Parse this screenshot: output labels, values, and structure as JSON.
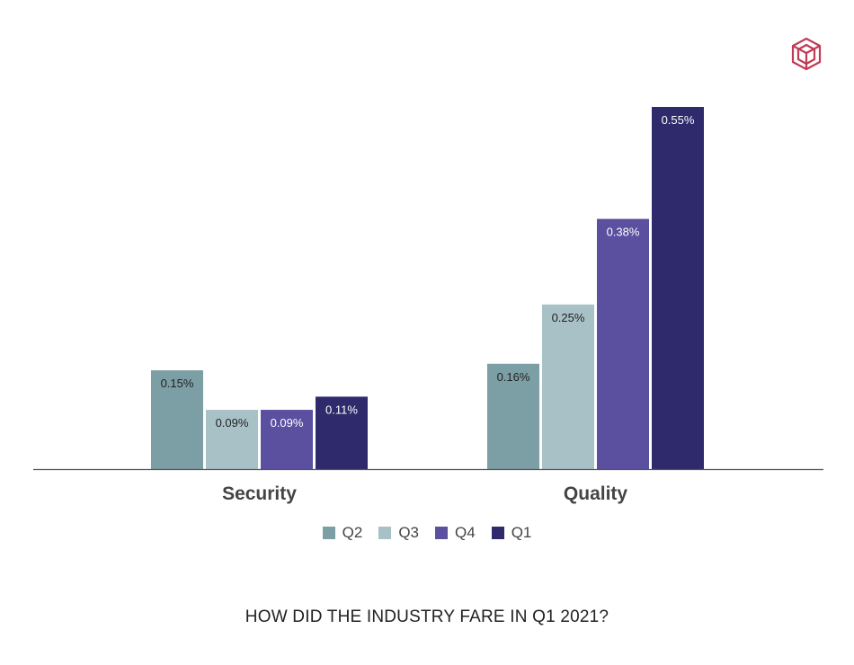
{
  "chart_data": {
    "type": "bar",
    "categories": [
      "Security",
      "Quality"
    ],
    "series": [
      {
        "name": "Q2",
        "color": "#7c9fa5",
        "values": [
          0.15,
          0.16
        ],
        "labels": [
          "0.15%",
          "0.16%"
        ]
      },
      {
        "name": "Q3",
        "color": "#a8c1c7",
        "values": [
          0.09,
          0.25
        ],
        "labels": [
          "0.09%",
          "0.25%"
        ]
      },
      {
        "name": "Q4",
        "color": "#5b50a0",
        "values": [
          0.09,
          0.38
        ],
        "labels": [
          "0.09%",
          "0.38%"
        ]
      },
      {
        "name": "Q1",
        "color": "#2e2a6b",
        "values": [
          0.11,
          0.55
        ],
        "labels": [
          "0.11%",
          "0.55%"
        ]
      }
    ],
    "ylim": [
      0,
      0.55
    ],
    "grid": false,
    "legend_position": "bottom"
  },
  "caption": "HOW DID THE INDUSTRY FARE IN Q1 2021?",
  "colors": {
    "logo": "#c23a55",
    "axis": "#555555",
    "label_dark": "#222222",
    "label_light": "#ffffff"
  },
  "icons": {
    "logo": "hexagon-logo-icon"
  }
}
